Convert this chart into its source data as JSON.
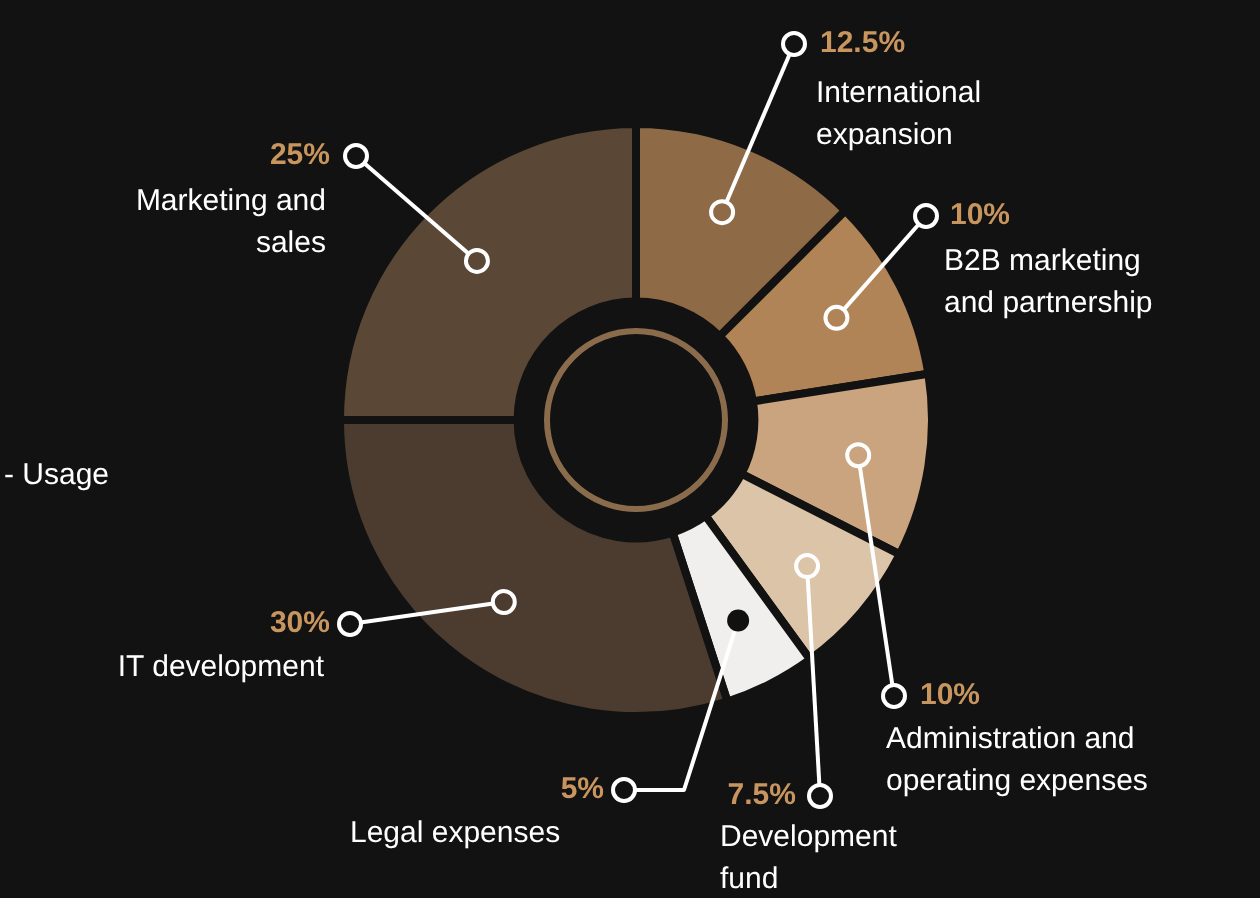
{
  "chart_data": {
    "type": "donut",
    "categories": [
      "International expansion",
      "B2B marketing and partnership",
      "Administration and operating expenses",
      "Development fund",
      "Legal expenses",
      "IT development",
      "Marketing and sales"
    ],
    "values": [
      12.5,
      10,
      10,
      7.5,
      5,
      30,
      25
    ],
    "value_labels": [
      "12.5%",
      "10%",
      "10%",
      "7.5%",
      "5%",
      "30%",
      "25%"
    ],
    "colors": [
      "#8e6a47",
      "#b08456",
      "#c9a47e",
      "#dcc4a8",
      "#f0efed",
      "#4b3c2f",
      "#5b4736"
    ],
    "annotations": [
      "- Usage"
    ],
    "legend": false
  }
}
